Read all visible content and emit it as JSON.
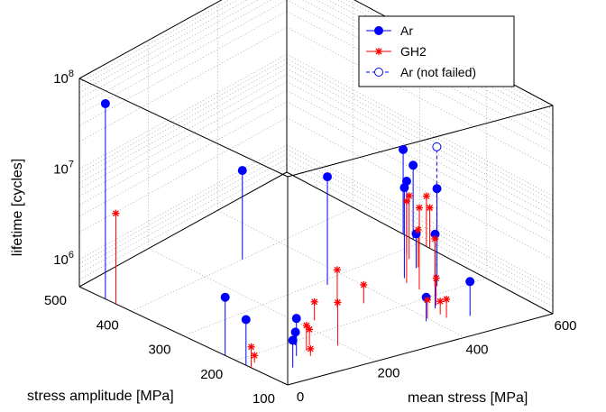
{
  "chart_data": {
    "type": "scatter",
    "variant": "3d-stem",
    "title": "",
    "xlabel": "mean stress [MPa]",
    "ylabel": "stress amplitude [MPa]",
    "zlabel": "lifetime [cycles]",
    "xlim": [
      0,
      600
    ],
    "ylim": [
      100,
      500
    ],
    "zlim": [
      500000,
      100000000
    ],
    "zscale": "log",
    "grid": true,
    "legend_position": "top-right",
    "x_ticks": [
      "0",
      "200",
      "400",
      "600"
    ],
    "y_ticks": [
      "100",
      "200",
      "300",
      "400",
      "500"
    ],
    "z_ticks": [
      "10^6",
      "10^7",
      "10^8"
    ],
    "series": [
      {
        "name": "Ar",
        "color": "#0000ff",
        "marker": "filled-circle",
        "points": [
          {
            "x": 0,
            "y": 450,
            "z": 72000000
          },
          {
            "x": 0,
            "y": 220,
            "z": 2200000
          },
          {
            "x": 0,
            "y": 180,
            "z": 1600000
          },
          {
            "x": 60,
            "y": 140,
            "z": 1000000
          },
          {
            "x": 100,
            "y": 165,
            "z": 1300000
          },
          {
            "x": 130,
            "y": 190,
            "z": 700000
          },
          {
            "x": 300,
            "y": 400,
            "z": 4800000
          },
          {
            "x": 350,
            "y": 290,
            "z": 7800000
          },
          {
            "x": 390,
            "y": 155,
            "z": 920000
          },
          {
            "x": 440,
            "y": 175,
            "z": 3300000
          },
          {
            "x": 480,
            "y": 250,
            "z": 5000000
          },
          {
            "x": 525,
            "y": 260,
            "z": 1200000
          },
          {
            "x": 550,
            "y": 290,
            "z": 3200000
          },
          {
            "x": 470,
            "y": 140,
            "z": 1200000
          },
          {
            "x": 505,
            "y": 215,
            "z": 6000000
          },
          {
            "x": 600,
            "y": 325,
            "z": 4300000
          },
          {
            "x": 600,
            "y": 310,
            "z": 3300000
          }
        ]
      },
      {
        "name": "GH2",
        "color": "#ff0000",
        "marker": "asterisk",
        "points": [
          {
            "x": 0,
            "y": 430,
            "z": 5000000
          },
          {
            "x": 0,
            "y": 170,
            "z": 850000
          },
          {
            "x": 20,
            "y": 180,
            "z": 600000
          },
          {
            "x": 120,
            "y": 155,
            "z": 600000
          },
          {
            "x": 130,
            "y": 170,
            "z": 950000
          },
          {
            "x": 150,
            "y": 180,
            "z": 750000
          },
          {
            "x": 190,
            "y": 160,
            "z": 1500000
          },
          {
            "x": 230,
            "y": 230,
            "z": 800000
          },
          {
            "x": 300,
            "y": 240,
            "z": 1300000
          },
          {
            "x": 350,
            "y": 230,
            "z": 800000
          },
          {
            "x": 400,
            "y": 160,
            "z": 800000
          },
          {
            "x": 430,
            "y": 150,
            "z": 800000
          },
          {
            "x": 430,
            "y": 160,
            "z": 700000
          },
          {
            "x": 450,
            "y": 180,
            "z": 1000000
          },
          {
            "x": 470,
            "y": 220,
            "z": 4000000
          },
          {
            "x": 500,
            "y": 215,
            "z": 1700000
          },
          {
            "x": 530,
            "y": 260,
            "z": 1300000
          },
          {
            "x": 540,
            "y": 280,
            "z": 2500000
          },
          {
            "x": 600,
            "y": 290,
            "z": 1800000
          },
          {
            "x": 600,
            "y": 285,
            "z": 1400000
          },
          {
            "x": 470,
            "y": 240,
            "z": 4000000
          }
        ]
      },
      {
        "name": "Ar (not failed)",
        "color": "#0000ff",
        "marker": "open-circle",
        "line": "dashed",
        "points": [
          {
            "x": 560,
            "y": 250,
            "z": 10500000
          }
        ]
      }
    ]
  }
}
